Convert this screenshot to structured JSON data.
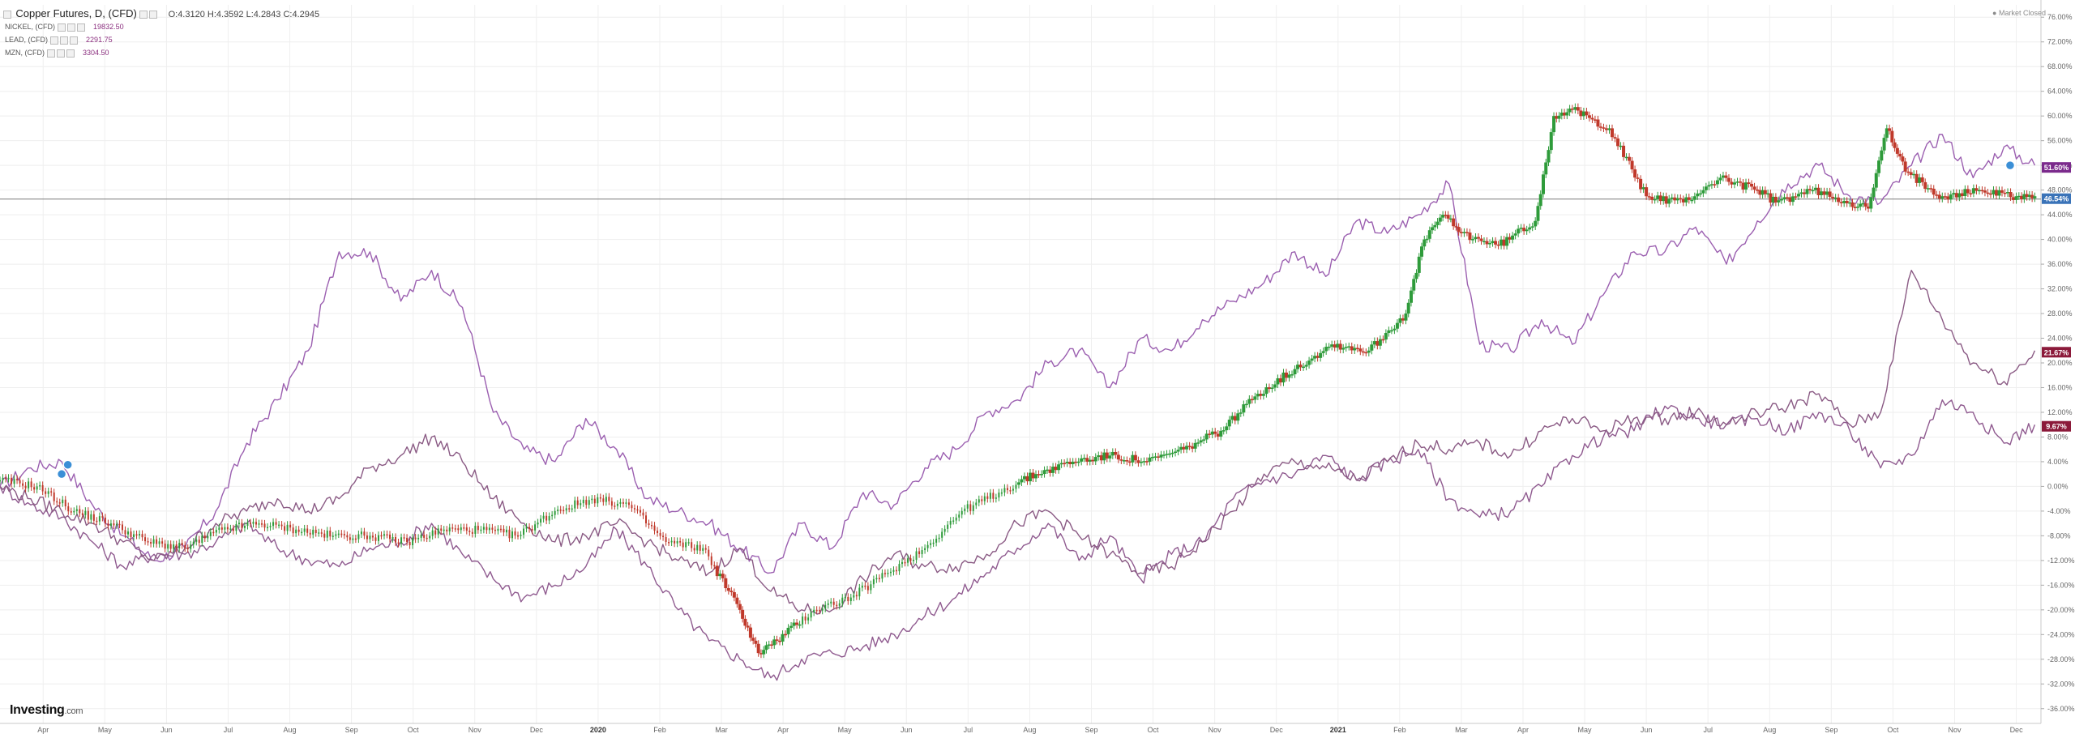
{
  "header": {
    "title": "Copper Futures, D, (CFD)",
    "ohlc": "O:4.3120  H:4.3592  L:4.2843  C:4.2945"
  },
  "legend": [
    {
      "name": "NICKEL, (CFD)",
      "value": "19832.50"
    },
    {
      "name": "LEAD, (CFD)",
      "value": "2291.75"
    },
    {
      "name": "MZN, (CFD)",
      "value": "3304.50"
    }
  ],
  "status": "Market Closed",
  "brand": {
    "name": "Investing",
    "suffix": ".com"
  },
  "colors": {
    "series": "#8f5a8f",
    "nickel": "#9b5fb0",
    "up": "#2e9b3a",
    "down": "#c0392b",
    "tag_purple": "#7b2a8c",
    "tag_maroon": "#8b1a3a",
    "tag_blue": "#3a73b8"
  },
  "price_tags": [
    {
      "label": "51.60%",
      "y": 51.6,
      "color": "#7b2a8c"
    },
    {
      "label": "46.54%",
      "y": 46.54,
      "color": "#3a73b8"
    },
    {
      "label": "21.67%",
      "y": 21.67,
      "color": "#8b1a3a"
    },
    {
      "label": "9.67%",
      "y": 9.67,
      "color": "#8b1a3a"
    }
  ],
  "chart_data": {
    "type": "line",
    "ylim": [
      -38,
      78
    ],
    "yticks": [
      76,
      72,
      68,
      64,
      60,
      56,
      52,
      48,
      44,
      40,
      36,
      32,
      28,
      24,
      20,
      16,
      12,
      8,
      4,
      0,
      -4,
      -8,
      -12,
      -16,
      -20,
      -24,
      -28,
      -32,
      -36
    ],
    "ytick_labels": [
      "76.00%",
      "72.00%",
      "68.00%",
      "64.00%",
      "60.00%",
      "56.00%",
      "52.00%",
      "48.00%",
      "44.00%",
      "40.00%",
      "36.00%",
      "32.00%",
      "28.00%",
      "24.00%",
      "20.00%",
      "16.00%",
      "12.00%",
      "8.00%",
      "4.00%",
      "0.00%",
      "-4.00%",
      "-8.00%",
      "-12.00%",
      "-16.00%",
      "-20.00%",
      "-24.00%",
      "-28.00%",
      "-32.00%",
      "-36.00%"
    ],
    "xlim": [
      0,
      33.1
    ],
    "xticks": [
      {
        "label": "Apr",
        "x": 0.7,
        "bold": false
      },
      {
        "label": "May",
        "x": 1.7,
        "bold": false
      },
      {
        "label": "Jun",
        "x": 2.7,
        "bold": false
      },
      {
        "label": "Jul",
        "x": 3.7,
        "bold": false
      },
      {
        "label": "Aug",
        "x": 4.7,
        "bold": false
      },
      {
        "label": "Sep",
        "x": 5.7,
        "bold": false
      },
      {
        "label": "Oct",
        "x": 6.7,
        "bold": false
      },
      {
        "label": "Nov",
        "x": 7.7,
        "bold": false
      },
      {
        "label": "Dec",
        "x": 8.7,
        "bold": false
      },
      {
        "label": "2020",
        "x": 9.7,
        "bold": true
      },
      {
        "label": "Feb",
        "x": 10.7,
        "bold": false
      },
      {
        "label": "Mar",
        "x": 11.7,
        "bold": false
      },
      {
        "label": "Apr",
        "x": 12.7,
        "bold": false
      },
      {
        "label": "May",
        "x": 13.7,
        "bold": false
      },
      {
        "label": "Jun",
        "x": 14.7,
        "bold": false
      },
      {
        "label": "Jul",
        "x": 15.7,
        "bold": false
      },
      {
        "label": "Aug",
        "x": 16.7,
        "bold": false
      },
      {
        "label": "Sep",
        "x": 17.7,
        "bold": false
      },
      {
        "label": "Oct",
        "x": 18.7,
        "bold": false
      },
      {
        "label": "Nov",
        "x": 19.7,
        "bold": false
      },
      {
        "label": "Dec",
        "x": 20.7,
        "bold": false
      },
      {
        "label": "2021",
        "x": 21.7,
        "bold": true
      },
      {
        "label": "Feb",
        "x": 22.7,
        "bold": false
      },
      {
        "label": "Mar",
        "x": 23.7,
        "bold": false
      },
      {
        "label": "Apr",
        "x": 24.7,
        "bold": false
      },
      {
        "label": "May",
        "x": 25.7,
        "bold": false
      },
      {
        "label": "Jun",
        "x": 26.7,
        "bold": false
      },
      {
        "label": "Jul",
        "x": 27.7,
        "bold": false
      },
      {
        "label": "Aug",
        "x": 28.7,
        "bold": false
      },
      {
        "label": "Sep",
        "x": 29.7,
        "bold": false
      },
      {
        "label": "Oct",
        "x": 30.7,
        "bold": false
      },
      {
        "label": "Nov",
        "x": 31.7,
        "bold": false
      },
      {
        "label": "Dec",
        "x": 32.7,
        "bold": false
      }
    ],
    "hline": 46.54,
    "series": [
      {
        "color": "#9b5fb0",
        "points": [
          [
            0,
            0
          ],
          [
            0.5,
            3
          ],
          [
            1,
            4
          ],
          [
            1.5,
            -3
          ],
          [
            2,
            -8
          ],
          [
            2.5,
            -12
          ],
          [
            3,
            -10
          ],
          [
            3.5,
            -4
          ],
          [
            4,
            7
          ],
          [
            4.5,
            14
          ],
          [
            5,
            22
          ],
          [
            5.5,
            38
          ],
          [
            6,
            38
          ],
          [
            6.5,
            30
          ],
          [
            7,
            35
          ],
          [
            7.5,
            29
          ],
          [
            8,
            12
          ],
          [
            8.5,
            6
          ],
          [
            9,
            4
          ],
          [
            9.5,
            11
          ],
          [
            10,
            6
          ],
          [
            10.5,
            -2
          ],
          [
            11,
            -4
          ],
          [
            11.5,
            -6
          ],
          [
            12,
            -10
          ],
          [
            12.5,
            -14
          ],
          [
            13,
            -6
          ],
          [
            13.5,
            -10
          ],
          [
            14,
            -1
          ],
          [
            14.5,
            -3
          ],
          [
            15,
            3
          ],
          [
            15.5,
            6
          ],
          [
            16,
            12
          ],
          [
            16.5,
            14
          ],
          [
            17,
            20
          ],
          [
            17.5,
            22
          ],
          [
            18,
            16
          ],
          [
            18.5,
            24
          ],
          [
            19,
            22
          ],
          [
            19.5,
            27
          ],
          [
            20,
            30
          ],
          [
            20.5,
            33
          ],
          [
            21,
            38
          ],
          [
            21.5,
            34
          ],
          [
            22,
            43
          ],
          [
            22.5,
            41
          ],
          [
            23,
            44
          ],
          [
            23.5,
            49
          ],
          [
            24,
            23
          ],
          [
            24.5,
            22
          ],
          [
            25,
            27
          ],
          [
            25.5,
            23
          ],
          [
            26,
            31
          ],
          [
            26.5,
            38
          ],
          [
            27,
            38
          ],
          [
            27.5,
            42
          ],
          [
            28,
            36
          ],
          [
            28.5,
            43
          ],
          [
            29,
            49
          ],
          [
            29.5,
            52
          ],
          [
            30,
            47
          ],
          [
            30.5,
            46
          ],
          [
            31,
            52
          ],
          [
            31.5,
            57
          ],
          [
            32,
            50
          ],
          [
            32.5,
            55
          ],
          [
            33,
            52
          ]
        ]
      },
      {
        "color": "#8f5a8f",
        "points": [
          [
            0,
            0
          ],
          [
            0.5,
            -3
          ],
          [
            1,
            -5
          ],
          [
            1.5,
            -9
          ],
          [
            2,
            -13
          ],
          [
            2.5,
            -11
          ],
          [
            3,
            -11
          ],
          [
            3.5,
            -9
          ],
          [
            4,
            -6
          ],
          [
            4.5,
            -10
          ],
          [
            5,
            -12
          ],
          [
            5.5,
            -13
          ],
          [
            6,
            -10
          ],
          [
            6.5,
            -9
          ],
          [
            7,
            -6
          ],
          [
            7.5,
            -11
          ],
          [
            8,
            -15
          ],
          [
            8.5,
            -18
          ],
          [
            9,
            -16
          ],
          [
            9.5,
            -13
          ],
          [
            10,
            -7
          ],
          [
            10.5,
            -13
          ],
          [
            11,
            -20
          ],
          [
            11.5,
            -25
          ],
          [
            12,
            -28
          ],
          [
            12.5,
            -31
          ],
          [
            13,
            -28
          ],
          [
            13.5,
            -27
          ],
          [
            14,
            -26
          ],
          [
            14.5,
            -24
          ],
          [
            15,
            -21
          ],
          [
            15.5,
            -18
          ],
          [
            16,
            -14
          ],
          [
            16.5,
            -10
          ],
          [
            17,
            -6
          ],
          [
            17.5,
            -12
          ],
          [
            18,
            -8
          ],
          [
            18.5,
            -15
          ],
          [
            19,
            -11
          ],
          [
            19.5,
            -9
          ],
          [
            20,
            -2
          ],
          [
            20.5,
            1
          ],
          [
            21,
            2
          ],
          [
            21.5,
            5
          ],
          [
            22,
            1
          ],
          [
            22.5,
            4
          ],
          [
            23,
            6
          ],
          [
            23.5,
            -2
          ],
          [
            24,
            -5
          ],
          [
            24.5,
            -4
          ],
          [
            25,
            0
          ],
          [
            25.5,
            5
          ],
          [
            26,
            8
          ],
          [
            26.5,
            9
          ],
          [
            27,
            13
          ],
          [
            27.5,
            11
          ],
          [
            28,
            10
          ],
          [
            28.5,
            11
          ],
          [
            29,
            9
          ],
          [
            29.5,
            12
          ],
          [
            30,
            9
          ],
          [
            30.5,
            3
          ],
          [
            31,
            5
          ],
          [
            31.5,
            14
          ],
          [
            32,
            12
          ],
          [
            32.5,
            7
          ],
          [
            33,
            10
          ]
        ]
      },
      {
        "color": "#8a5a84",
        "points": [
          [
            0,
            0
          ],
          [
            0.5,
            -2
          ],
          [
            1,
            -4
          ],
          [
            1.5,
            -6
          ],
          [
            2,
            -9
          ],
          [
            2.5,
            -12
          ],
          [
            3,
            -10
          ],
          [
            3.5,
            -6
          ],
          [
            4,
            -4
          ],
          [
            4.5,
            -2
          ],
          [
            5,
            -4
          ],
          [
            5.5,
            -2
          ],
          [
            6,
            3
          ],
          [
            6.5,
            5
          ],
          [
            7,
            8
          ],
          [
            7.5,
            4
          ],
          [
            8,
            -2
          ],
          [
            8.5,
            -6
          ],
          [
            9,
            -9
          ],
          [
            9.5,
            -8
          ],
          [
            10,
            -6
          ],
          [
            10.5,
            -9
          ],
          [
            11,
            -12
          ],
          [
            11.5,
            -14
          ],
          [
            12,
            -10
          ],
          [
            12.5,
            -17
          ],
          [
            13,
            -20
          ],
          [
            13.5,
            -20
          ],
          [
            14,
            -15
          ],
          [
            14.5,
            -11
          ],
          [
            15,
            -13
          ],
          [
            15.5,
            -13
          ],
          [
            16,
            -11
          ],
          [
            16.5,
            -6
          ],
          [
            17,
            -4
          ],
          [
            17.5,
            -8
          ],
          [
            18,
            -11
          ],
          [
            18.5,
            -14
          ],
          [
            19,
            -13
          ],
          [
            19.5,
            -9
          ],
          [
            20,
            -4
          ],
          [
            20.5,
            2
          ],
          [
            21,
            4
          ],
          [
            21.5,
            3
          ],
          [
            22,
            1
          ],
          [
            22.5,
            4
          ],
          [
            23,
            7
          ],
          [
            23.5,
            6
          ],
          [
            24,
            7
          ],
          [
            24.5,
            5
          ],
          [
            25,
            9
          ],
          [
            25.5,
            11
          ],
          [
            26,
            9
          ],
          [
            26.5,
            11
          ],
          [
            27,
            11
          ],
          [
            27.5,
            12
          ],
          [
            28,
            10
          ],
          [
            28.5,
            12
          ],
          [
            29,
            13
          ],
          [
            29.5,
            15
          ],
          [
            30,
            10
          ],
          [
            30.5,
            12
          ],
          [
            31,
            35
          ],
          [
            31.5,
            27
          ],
          [
            32,
            20
          ],
          [
            32.5,
            17
          ],
          [
            33,
            22
          ]
        ]
      }
    ],
    "candles": [
      [
        0,
        1
      ],
      [
        0.6,
        0
      ],
      [
        1.2,
        -4
      ],
      [
        1.8,
        -6
      ],
      [
        2.4,
        -9
      ],
      [
        3,
        -10
      ],
      [
        3.6,
        -7
      ],
      [
        4.2,
        -6
      ],
      [
        4.8,
        -7
      ],
      [
        5.4,
        -8
      ],
      [
        6,
        -8
      ],
      [
        6.6,
        -9
      ],
      [
        7.2,
        -7
      ],
      [
        7.8,
        -7
      ],
      [
        8.4,
        -8
      ],
      [
        9,
        -4
      ],
      [
        9.6,
        -2
      ],
      [
        10.2,
        -3
      ],
      [
        10.8,
        -9
      ],
      [
        11.4,
        -10
      ],
      [
        12,
        -20
      ],
      [
        12.3,
        -27
      ],
      [
        12.6,
        -25
      ],
      [
        13.2,
        -20
      ],
      [
        13.8,
        -18
      ],
      [
        14.4,
        -14
      ],
      [
        15,
        -10
      ],
      [
        15.6,
        -4
      ],
      [
        16.2,
        -1
      ],
      [
        16.8,
        2
      ],
      [
        17.4,
        4
      ],
      [
        18,
        5
      ],
      [
        18.6,
        4
      ],
      [
        19.2,
        6
      ],
      [
        19.8,
        9
      ],
      [
        20.4,
        15
      ],
      [
        21,
        19
      ],
      [
        21.6,
        23
      ],
      [
        22.2,
        22
      ],
      [
        22.8,
        28
      ],
      [
        23.1,
        40
      ],
      [
        23.4,
        44
      ],
      [
        23.7,
        41
      ],
      [
        24.3,
        39
      ],
      [
        24.9,
        43
      ],
      [
        25.2,
        60
      ],
      [
        25.5,
        61
      ],
      [
        26.1,
        58
      ],
      [
        26.7,
        47
      ],
      [
        27.3,
        46
      ],
      [
        27.9,
        50
      ],
      [
        28.5,
        48
      ],
      [
        28.8,
        46
      ],
      [
        29.4,
        48
      ],
      [
        30,
        46
      ],
      [
        30.3,
        45
      ],
      [
        30.6,
        58
      ],
      [
        30.9,
        51
      ],
      [
        31.5,
        47
      ],
      [
        32.1,
        48
      ],
      [
        32.7,
        47
      ],
      [
        33,
        47
      ]
    ],
    "markers": [
      [
        1,
        2
      ],
      [
        1.1,
        3.5
      ],
      [
        32.6,
        52
      ]
    ]
  }
}
